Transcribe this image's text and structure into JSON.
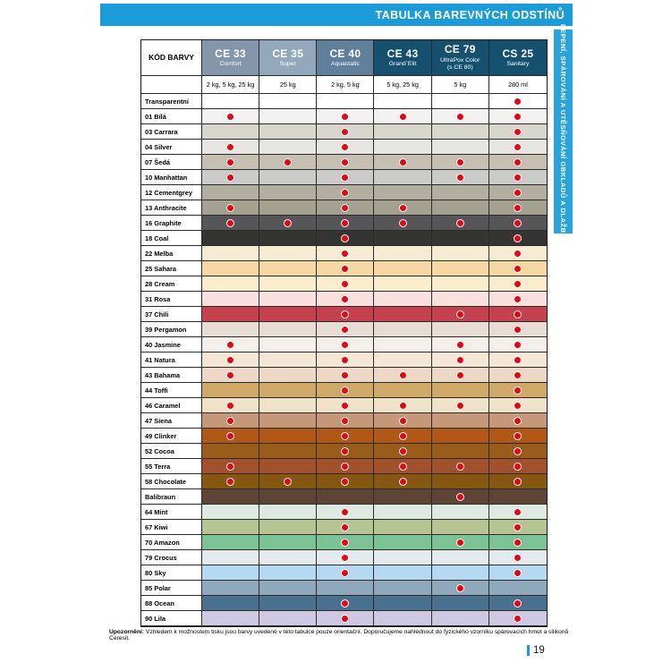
{
  "page": {
    "header_title": "TABULKA BAREVNÝCH ODSTÍNŮ",
    "side_tab": "LEPENÍ, SPÁROVÁNÍ A UTĚSŇOVÁNÍ OBKLADŮ A DLAŽBY",
    "footer_note_label": "Upozornění:",
    "footer_note": " Vzhledem k možnostem tisku jsou barvy uvedené v této tabulce pouze orientační. Doporučujeme nahlédnout do fyzického vzorníku spárovacích hmot a silikonů Ceresit.",
    "page_number": "19"
  },
  "colors": {
    "accent_blue": "#1b9cd8",
    "tab_blue": "#2aa3dc",
    "dot_red": "#e30613"
  },
  "table": {
    "code_header": "KÓD BARVY",
    "products": [
      {
        "code": "CE 33",
        "name": "Comfort",
        "name2": "",
        "sizes": "2 kg, 5 kg, 25 kg",
        "header_color": "#8496a9"
      },
      {
        "code": "CE 35",
        "name": "Super",
        "name2": "",
        "sizes": "25 kg",
        "header_color": "#93a9bb"
      },
      {
        "code": "CE 40",
        "name": "Aquastatic",
        "name2": "",
        "sizes": "2 kg, 5 kg",
        "header_color": "#5f7f9b"
      },
      {
        "code": "CE 43",
        "name": "Grand´Elit",
        "name2": "",
        "sizes": "5 kg, 25 kg",
        "header_color": "#16506f"
      },
      {
        "code": "CE 79",
        "name": "UltraPox Color",
        "name2": "(s CE 80)",
        "sizes": "5 kg",
        "header_color": "#16506f"
      },
      {
        "code": "CS 25",
        "name": "Sanitary",
        "name2": "",
        "sizes": "280 ml",
        "header_color": "#16506f"
      }
    ],
    "rows": [
      {
        "label": "Transparentní",
        "color": "#ffffff",
        "dots": [
          0,
          0,
          0,
          0,
          0,
          1
        ]
      },
      {
        "label": "01 Bílá",
        "color": "#f3f2f0",
        "dots": [
          1,
          0,
          1,
          1,
          1,
          1
        ]
      },
      {
        "label": "03 Carrara",
        "color": "#d8d4ce",
        "dots": [
          0,
          0,
          1,
          0,
          0,
          1
        ]
      },
      {
        "label": "04 Silver",
        "color": "#e7e5e1",
        "dots": [
          1,
          0,
          1,
          0,
          0,
          1
        ]
      },
      {
        "label": "07 Šedá",
        "color": "#c5c0b1",
        "dots": [
          1,
          1,
          1,
          1,
          1,
          1
        ]
      },
      {
        "label": "10 Manhattan",
        "color": "#cbcbc9",
        "dots": [
          1,
          0,
          1,
          0,
          1,
          1
        ]
      },
      {
        "label": "12 Cementgrey",
        "color": "#b2afa0",
        "dots": [
          0,
          0,
          1,
          0,
          0,
          1
        ]
      },
      {
        "label": "13 Anthracite",
        "color": "#a3a090",
        "dots": [
          1,
          0,
          1,
          1,
          0,
          1
        ]
      },
      {
        "label": "16 Graphite",
        "color": "#565659",
        "dots": [
          1,
          1,
          1,
          1,
          1,
          1
        ]
      },
      {
        "label": "18 Coal",
        "color": "#343432",
        "dots": [
          0,
          0,
          1,
          0,
          0,
          1
        ]
      },
      {
        "label": "22 Melba",
        "color": "#f6ecd4",
        "dots": [
          0,
          0,
          1,
          0,
          0,
          1
        ]
      },
      {
        "label": "25 Sahara",
        "color": "#f5d8a4",
        "dots": [
          0,
          0,
          1,
          0,
          0,
          1
        ]
      },
      {
        "label": "28 Cream",
        "color": "#faeccd",
        "dots": [
          0,
          0,
          1,
          0,
          0,
          1
        ]
      },
      {
        "label": "31 Rosa",
        "color": "#fae1dd",
        "dots": [
          0,
          0,
          1,
          0,
          0,
          1
        ]
      },
      {
        "label": "37 Chili",
        "color": "#c4414d",
        "dots": [
          0,
          0,
          1,
          0,
          1,
          1
        ]
      },
      {
        "label": "39 Pergamon",
        "color": "#e5dcd4",
        "dots": [
          0,
          0,
          1,
          0,
          0,
          1
        ]
      },
      {
        "label": "40 Jasmine",
        "color": "#f4f0e9",
        "dots": [
          1,
          0,
          1,
          0,
          1,
          1
        ]
      },
      {
        "label": "41 Natura",
        "color": "#f5e7d5",
        "dots": [
          1,
          0,
          1,
          0,
          1,
          1
        ]
      },
      {
        "label": "43 Bahama",
        "color": "#edd8c8",
        "dots": [
          1,
          0,
          1,
          1,
          1,
          1
        ]
      },
      {
        "label": "44 Toffi",
        "color": "#cfa967",
        "dots": [
          0,
          0,
          1,
          0,
          0,
          1
        ]
      },
      {
        "label": "46 Caramel",
        "color": "#f0e3c9",
        "dots": [
          1,
          0,
          1,
          1,
          1,
          1
        ]
      },
      {
        "label": "47 Siena",
        "color": "#c49878",
        "dots": [
          1,
          0,
          1,
          1,
          0,
          1
        ]
      },
      {
        "label": "49 Clinker",
        "color": "#b25817",
        "dots": [
          1,
          0,
          1,
          1,
          0,
          1
        ]
      },
      {
        "label": "52 Cocoa",
        "color": "#995c1a",
        "dots": [
          0,
          0,
          1,
          1,
          0,
          1
        ]
      },
      {
        "label": "55 Terra",
        "color": "#a2512c",
        "dots": [
          1,
          0,
          1,
          1,
          1,
          1
        ]
      },
      {
        "label": "58 Chocolate",
        "color": "#855713",
        "dots": [
          1,
          1,
          1,
          1,
          0,
          1
        ]
      },
      {
        "label": "Balibraun",
        "color": "#5e4437",
        "dots": [
          0,
          0,
          0,
          0,
          1,
          0
        ]
      },
      {
        "label": "64 Mint",
        "color": "#dde9e1",
        "dots": [
          0,
          0,
          1,
          0,
          0,
          1
        ]
      },
      {
        "label": "67 Kiwi",
        "color": "#b5c492",
        "dots": [
          0,
          0,
          1,
          0,
          0,
          1
        ]
      },
      {
        "label": "70 Amazon",
        "color": "#7dc295",
        "dots": [
          0,
          0,
          1,
          0,
          1,
          1
        ]
      },
      {
        "label": "79 Crocus",
        "color": "#e4eaee",
        "dots": [
          0,
          0,
          1,
          0,
          0,
          1
        ]
      },
      {
        "label": "80 Sky",
        "color": "#b5d9f0",
        "dots": [
          0,
          0,
          1,
          0,
          0,
          1
        ]
      },
      {
        "label": "85 Polar",
        "color": "#8fa9bc",
        "dots": [
          0,
          0,
          0,
          0,
          1,
          0
        ]
      },
      {
        "label": "88 Ocean",
        "color": "#49708d",
        "dots": [
          0,
          0,
          1,
          0,
          0,
          1
        ]
      },
      {
        "label": "90 Lila",
        "color": "#cfc8e2",
        "dots": [
          0,
          0,
          1,
          0,
          0,
          1
        ]
      }
    ]
  }
}
